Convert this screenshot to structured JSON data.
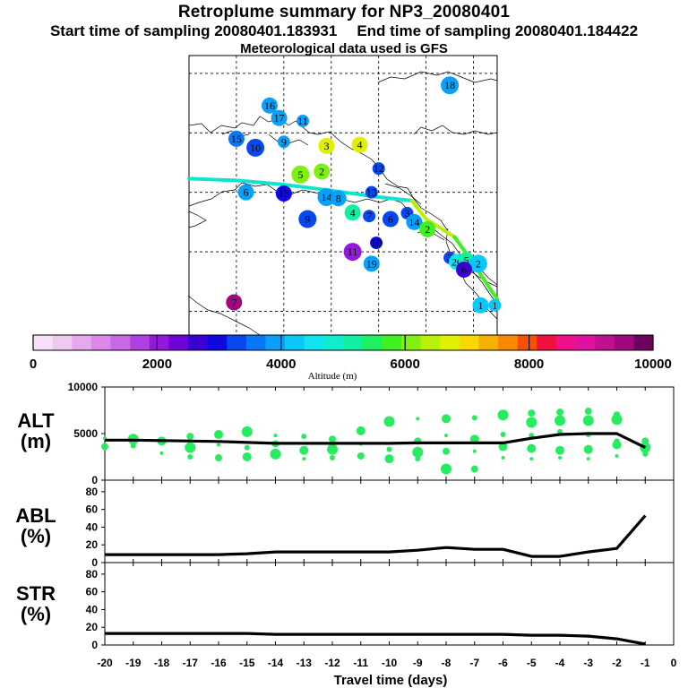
{
  "header": {
    "title": "Retroplume summary for NP3_20080401",
    "start_label": "Start time of sampling 20080401.183931",
    "end_label": "End time of sampling 20080401.184422",
    "met_label": "Meteorological data used is GFS"
  },
  "colorbar": {
    "title": "Altitude (m)",
    "ticks": [
      "0",
      "2000",
      "4000",
      "6000",
      "8000",
      "10000"
    ],
    "colors": [
      "#f8e0f8",
      "#f0c8f0",
      "#e8a8ee",
      "#dc88ea",
      "#c868e6",
      "#b040e0",
      "#9418dc",
      "#7000d8",
      "#3c00d4",
      "#1008e0",
      "#0848f0",
      "#0878f8",
      "#08a0f8",
      "#08c8f8",
      "#10e4f0",
      "#10ecd0",
      "#10f0a0",
      "#20f060",
      "#40f020",
      "#80f010",
      "#b8f008",
      "#e0f000",
      "#f8d800",
      "#f8b000",
      "#f88800",
      "#f85000",
      "#f01040",
      "#f0108c",
      "#e010a0",
      "#c01090",
      "#a00880",
      "#700060"
    ]
  },
  "map": {
    "labels": [
      {
        "n": "18",
        "lon": -105,
        "lat": 78,
        "alt": 3800
      },
      {
        "n": "16",
        "lon": -143,
        "lat": 74.6,
        "alt": 3900
      },
      {
        "n": "17",
        "lon": -141,
        "lat": 72.5,
        "alt": 3900
      },
      {
        "n": "11",
        "lon": -136,
        "lat": 72,
        "alt": 3900
      },
      {
        "n": "15",
        "lon": -150,
        "lat": 69,
        "alt": 3700
      },
      {
        "n": "10",
        "lon": -146,
        "lat": 67.5,
        "alt": 3300
      },
      {
        "n": "9",
        "lon": -140,
        "lat": 68.5,
        "alt": 3900
      },
      {
        "n": "3",
        "lon": -131,
        "lat": 67.8,
        "alt": 6800
      },
      {
        "n": "4",
        "lon": -124,
        "lat": 68,
        "alt": 6800
      },
      {
        "n": "12",
        "lon": -120,
        "lat": 64,
        "alt": 3400
      },
      {
        "n": "5",
        "lon": -136.5,
        "lat": 63,
        "alt": 6200
      },
      {
        "n": "2",
        "lon": -132,
        "lat": 63.5,
        "alt": 6200
      },
      {
        "n": "13",
        "lon": -121.5,
        "lat": 60,
        "alt": 3300
      },
      {
        "n": "6",
        "lon": -148,
        "lat": 60,
        "alt": 3900
      },
      {
        "n": "15",
        "lon": -140,
        "lat": 59.8,
        "alt": 3000
      },
      {
        "n": "14",
        "lon": -131,
        "lat": 59.2,
        "alt": 3900
      },
      {
        "n": "8",
        "lon": -128.5,
        "lat": 59,
        "alt": 3900
      },
      {
        "n": "4",
        "lon": -125.5,
        "lat": 56.6,
        "alt": 5300
      },
      {
        "n": "7",
        "lon": -122,
        "lat": 56,
        "alt": 3200
      },
      {
        "n": "6",
        "lon": -117.5,
        "lat": 55.5,
        "alt": 3200
      },
      {
        "n": "9",
        "lon": -135,
        "lat": 55.5,
        "alt": 3200
      },
      {
        "n": "3",
        "lon": -114,
        "lat": 56.5,
        "alt": 3200
      },
      {
        "n": "14",
        "lon": -112.5,
        "lat": 55,
        "alt": 3900
      },
      {
        "n": "2",
        "lon": -109.7,
        "lat": 53.8,
        "alt": 5900
      },
      {
        "n": "10",
        "lon": -120.5,
        "lat": 51.5,
        "alt": 2900
      },
      {
        "n": "11",
        "lon": -125.5,
        "lat": 50,
        "alt": 2100
      },
      {
        "n": "19",
        "lon": -121.5,
        "lat": 48,
        "alt": 3900
      },
      {
        "n": "3",
        "lon": -105,
        "lat": 49,
        "alt": 3400
      },
      {
        "n": "20",
        "lon": -103.5,
        "lat": 48.3,
        "alt": 4500
      },
      {
        "n": "5",
        "lon": -101.5,
        "lat": 48.6,
        "alt": 5200
      },
      {
        "n": "2",
        "lon": -99,
        "lat": 48,
        "alt": 4200
      },
      {
        "n": "6",
        "lon": -102,
        "lat": 47,
        "alt": 2500
      },
      {
        "n": "1",
        "lon": -98.5,
        "lat": 41,
        "alt": 4300
      },
      {
        "n": "1",
        "lon": -95.5,
        "lat": 41,
        "alt": 4300
      },
      {
        "n": "7",
        "lon": -150.5,
        "lat": 41.5,
        "alt": 9500
      }
    ]
  },
  "panels": {
    "x_ticks": [
      "-20",
      "-19",
      "-18",
      "-17",
      "-16",
      "-15",
      "-14",
      "-13",
      "-12",
      "-11",
      "-10",
      "-9",
      "-8",
      "-7",
      "-6",
      "-5",
      "-4",
      "-3",
      "-2",
      "-1",
      "0"
    ],
    "x_label": "Travel time (days)",
    "alt": {
      "label_top": "ALT",
      "label_bottom": "(m)",
      "y_ticks": [
        "10000",
        "5000",
        "0"
      ],
      "ymax": 10000,
      "line": [
        4300,
        4300,
        4250,
        4200,
        4150,
        4050,
        3950,
        3950,
        3950,
        3950,
        3950,
        4000,
        4000,
        4000,
        4000,
        4500,
        4900,
        5000,
        5000,
        3500
      ],
      "dots": [
        [
          -20,
          4500
        ],
        [
          -20,
          3600
        ],
        [
          -19,
          4400
        ],
        [
          -19,
          3700
        ],
        [
          -18,
          4200
        ],
        [
          -18,
          2900
        ],
        [
          -17,
          4700
        ],
        [
          -17,
          3500
        ],
        [
          -17,
          2500
        ],
        [
          -16,
          4900
        ],
        [
          -16,
          3800
        ],
        [
          -16,
          2400
        ],
        [
          -15,
          5200
        ],
        [
          -15,
          3500
        ],
        [
          -15,
          2500
        ],
        [
          -14,
          4800
        ],
        [
          -14,
          3900
        ],
        [
          -14,
          2800
        ],
        [
          -13,
          4700
        ],
        [
          -13,
          3200
        ],
        [
          -13,
          2300
        ],
        [
          -12,
          4400
        ],
        [
          -12,
          3300
        ],
        [
          -12,
          2400
        ],
        [
          -11,
          5300
        ],
        [
          -11,
          3900
        ],
        [
          -11,
          2600
        ],
        [
          -10,
          6300
        ],
        [
          -10,
          3300
        ],
        [
          -10,
          2300
        ],
        [
          -9,
          6600
        ],
        [
          -9,
          4200
        ],
        [
          -9,
          3000
        ],
        [
          -9,
          2300
        ],
        [
          -8,
          6600
        ],
        [
          -8,
          4800
        ],
        [
          -8,
          3100
        ],
        [
          -8,
          1200
        ],
        [
          -7,
          6700
        ],
        [
          -7,
          4400
        ],
        [
          -7,
          3100
        ],
        [
          -7,
          1200
        ],
        [
          -6,
          7000
        ],
        [
          -6,
          4900
        ],
        [
          -6,
          3600
        ],
        [
          -6,
          2400
        ],
        [
          -5,
          7200
        ],
        [
          -5,
          6200
        ],
        [
          -5,
          4800
        ],
        [
          -5,
          3400
        ],
        [
          -5,
          2300
        ],
        [
          -4,
          7300
        ],
        [
          -4,
          6400
        ],
        [
          -4,
          5200
        ],
        [
          -4,
          3200
        ],
        [
          -4,
          2400
        ],
        [
          -3,
          7400
        ],
        [
          -3,
          6400
        ],
        [
          -3,
          4900
        ],
        [
          -3,
          3300
        ],
        [
          -3,
          2300
        ],
        [
          -2,
          7000
        ],
        [
          -2,
          6500
        ],
        [
          -2,
          4200
        ],
        [
          -2,
          3800
        ],
        [
          -2,
          2600
        ],
        [
          -1,
          4200
        ],
        [
          -1,
          3500
        ],
        [
          -1,
          2800
        ]
      ]
    },
    "abl": {
      "label_top": "ABL",
      "label_bottom": "(%)",
      "y_ticks": [
        "80",
        "60",
        "40",
        "20",
        "0"
      ],
      "ymax": 93,
      "line": [
        9,
        9,
        9,
        9,
        9,
        10,
        12,
        12,
        12,
        12,
        12,
        14,
        17,
        15,
        15,
        7,
        7,
        12,
        16,
        53
      ]
    },
    "str": {
      "label_top": "STR",
      "label_bottom": "(%)",
      "y_ticks": [
        "80",
        "60",
        "40",
        "20",
        "0"
      ],
      "ymax": 93,
      "line": [
        13,
        13,
        13,
        13,
        13,
        13,
        12,
        12,
        12,
        12,
        12,
        12,
        12,
        12,
        12,
        11,
        11,
        10,
        7,
        1
      ]
    }
  }
}
